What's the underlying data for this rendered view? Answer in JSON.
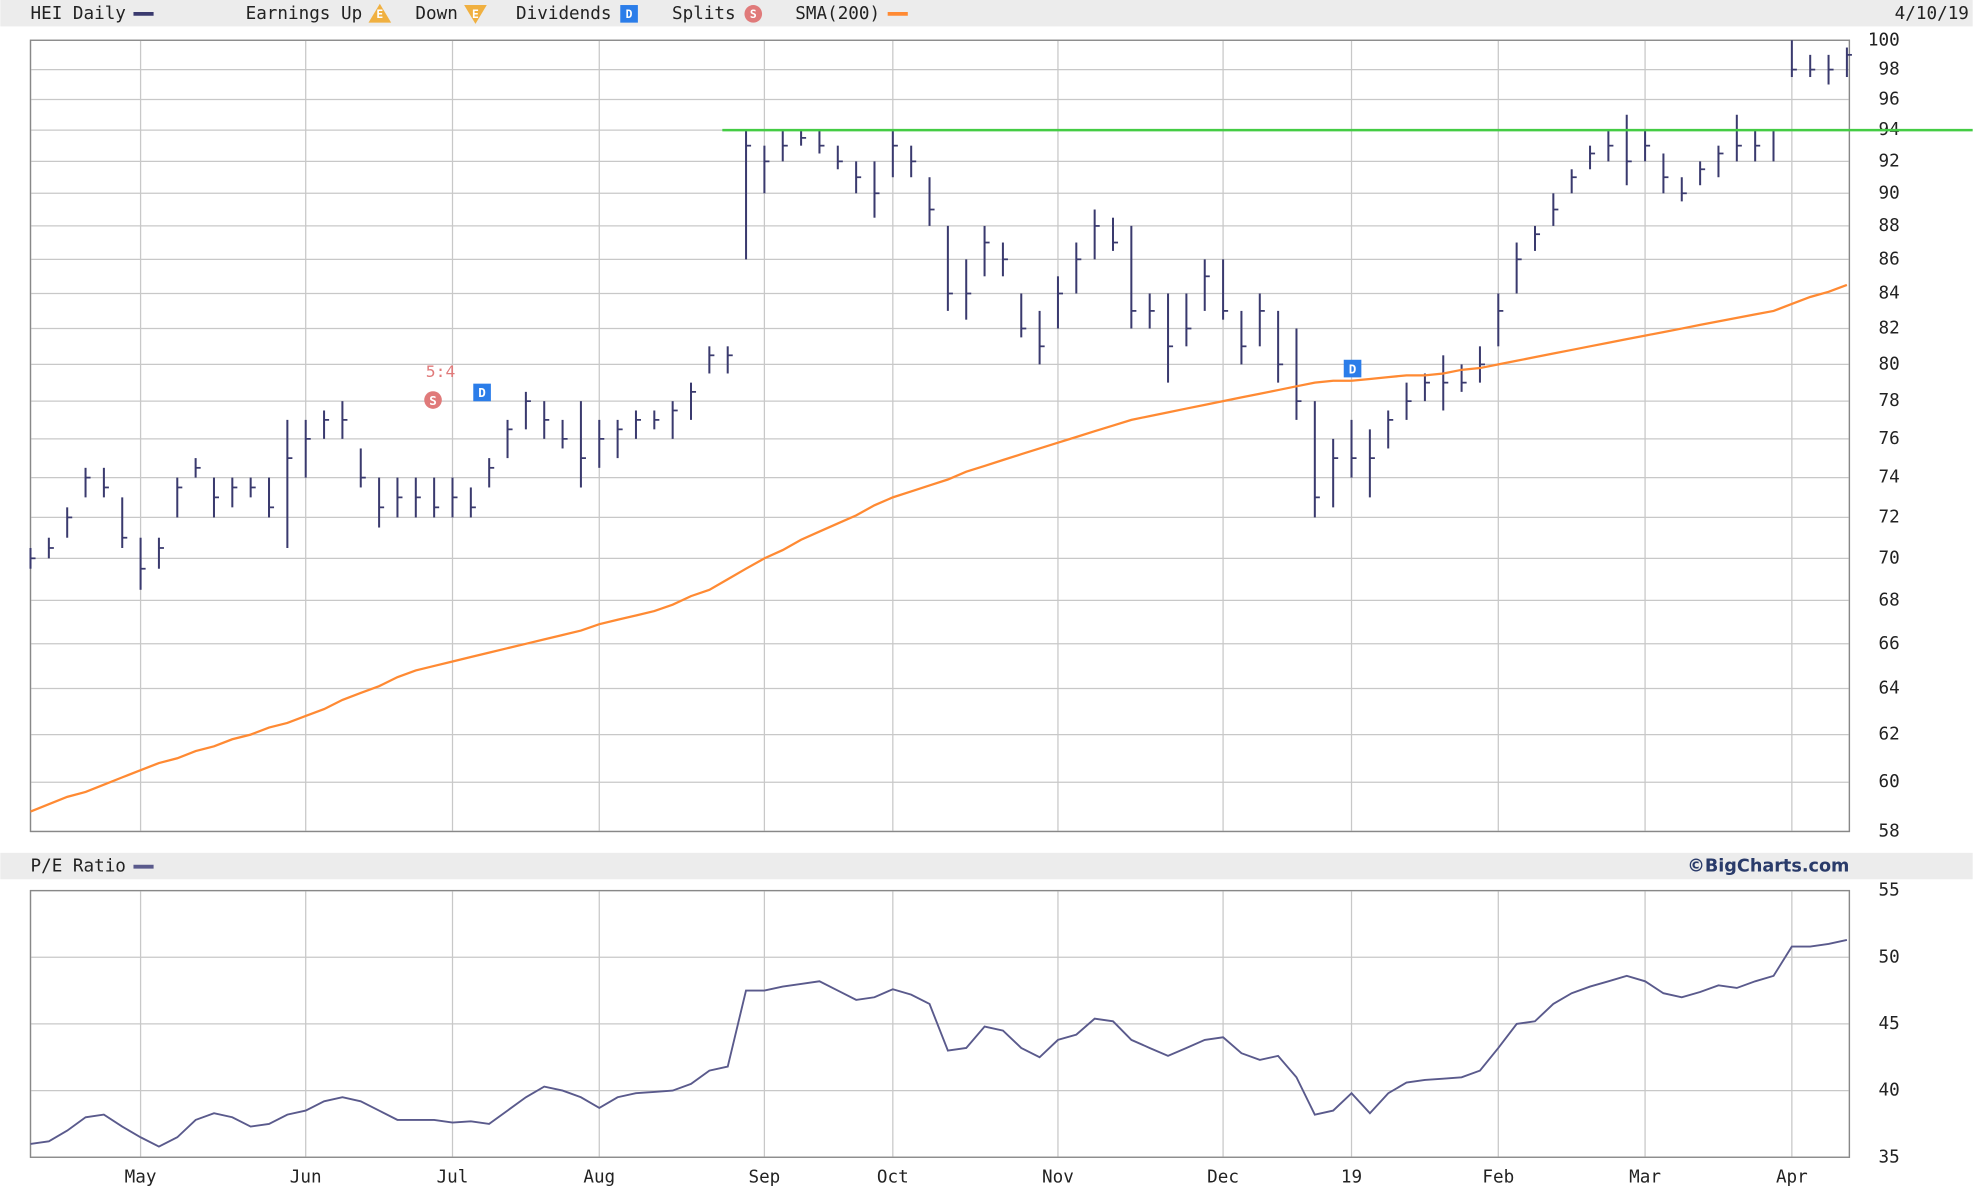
{
  "chart_data": [
    {
      "type": "ohlc",
      "log": true,
      "grid": true,
      "date": "4/10/19",
      "ylim": [
        58,
        100
      ],
      "yticks": [
        58,
        60,
        62,
        64,
        66,
        68,
        70,
        72,
        74,
        76,
        78,
        80,
        82,
        84,
        86,
        88,
        90,
        92,
        94,
        96,
        98,
        100
      ],
      "series": [
        {
          "name": "HEI Daily",
          "color": "#3a3a6e",
          "high": [
            70.5,
            71,
            72.5,
            74.5,
            74.5,
            73,
            71,
            71,
            74,
            75,
            74,
            74,
            74,
            74,
            77,
            77,
            77.5,
            78,
            75.5,
            74,
            74,
            74,
            74,
            74,
            73.5,
            75,
            77,
            78.5,
            78,
            77,
            78,
            77,
            77,
            77.5,
            77.5,
            78,
            79,
            81,
            81,
            94,
            93,
            94,
            94,
            94,
            93,
            92,
            92,
            94,
            93,
            91,
            88,
            86,
            88,
            87,
            84,
            83,
            85,
            87,
            89,
            88.5,
            88,
            84,
            84,
            84,
            86,
            86,
            83,
            84,
            83,
            82,
            78,
            76,
            77,
            76.5,
            77.5,
            79,
            79.5,
            80.5,
            80,
            81,
            84,
            87,
            88,
            90,
            91.5,
            93,
            94,
            95,
            94,
            92.5,
            91,
            92,
            93,
            95,
            94,
            94,
            100,
            99,
            99,
            99.5
          ],
          "low": [
            69.5,
            70,
            71,
            73,
            73,
            70.5,
            68.5,
            69.5,
            72,
            74,
            72,
            72.5,
            73,
            72,
            70.5,
            74,
            76,
            76,
            73.5,
            71.5,
            72,
            72,
            72,
            72,
            72,
            73.5,
            75,
            76.5,
            76,
            75.5,
            73.5,
            74.5,
            75,
            76,
            76.5,
            76,
            77,
            79.5,
            79.5,
            86,
            90,
            92,
            93,
            92.5,
            91.5,
            90,
            88.5,
            91,
            91,
            88,
            83,
            82.5,
            85,
            85,
            81.5,
            80,
            82,
            84,
            86,
            86.5,
            82,
            82,
            79,
            81,
            83,
            82.5,
            80,
            81,
            79,
            77,
            72,
            72.5,
            74,
            73,
            75.5,
            77,
            78,
            77.5,
            78.5,
            79,
            81,
            84,
            86.5,
            88,
            90,
            91.5,
            92,
            90.5,
            92,
            90,
            89.5,
            90.5,
            91,
            92,
            92,
            92,
            97.5,
            97.5,
            97,
            97.5
          ],
          "values": [
            70,
            70.5,
            72,
            74,
            73.5,
            71,
            69.5,
            70.5,
            73.5,
            74.5,
            73,
            73.5,
            73.5,
            72.5,
            75,
            76,
            77,
            77,
            74,
            72.5,
            73,
            73,
            72.5,
            73,
            72.5,
            74.5,
            76.5,
            78,
            77,
            76,
            75,
            76,
            76.5,
            77,
            77,
            77.5,
            78.5,
            80.5,
            80.5,
            93,
            92,
            93,
            93.5,
            93,
            92,
            91,
            90,
            93,
            92,
            89,
            84,
            84,
            87,
            86,
            82,
            81,
            84,
            86,
            88,
            87,
            83,
            83,
            81,
            82,
            85,
            83,
            81,
            83,
            80,
            78,
            73,
            75,
            75,
            75,
            77,
            78,
            79,
            79,
            79,
            80,
            83,
            86,
            87.5,
            89,
            91,
            92.5,
            93,
            92,
            93,
            91,
            90,
            91.5,
            92.5,
            93,
            93,
            94,
            98,
            98,
            98,
            99
          ]
        },
        {
          "name": "SMA(200)",
          "color": "#ff8a33",
          "values": [
            58.8,
            59.1,
            59.4,
            59.6,
            59.9,
            60.2,
            60.5,
            60.8,
            61.0,
            61.3,
            61.5,
            61.8,
            62.0,
            62.3,
            62.5,
            62.8,
            63.1,
            63.5,
            63.8,
            64.1,
            64.5,
            64.8,
            65.0,
            65.2,
            65.4,
            65.6,
            65.8,
            66.0,
            66.2,
            66.4,
            66.6,
            66.9,
            67.1,
            67.3,
            67.5,
            67.8,
            68.2,
            68.5,
            69.0,
            69.5,
            70.0,
            70.4,
            70.9,
            71.3,
            71.7,
            72.1,
            72.6,
            73.0,
            73.3,
            73.6,
            73.9,
            74.3,
            74.6,
            74.9,
            75.2,
            75.5,
            75.8,
            76.1,
            76.4,
            76.7,
            77.0,
            77.2,
            77.4,
            77.6,
            77.8,
            78.0,
            78.2,
            78.4,
            78.6,
            78.8,
            79.0,
            79.1,
            79.1,
            79.2,
            79.3,
            79.4,
            79.4,
            79.5,
            79.7,
            79.8,
            80.0,
            80.2,
            80.4,
            80.6,
            80.8,
            81.0,
            81.2,
            81.4,
            81.6,
            81.8,
            82.0,
            82.2,
            82.4,
            82.6,
            82.8,
            83.0,
            83.4,
            83.8,
            84.1,
            84.5
          ]
        }
      ],
      "event_legend": [
        {
          "name": "Earnings Up",
          "icon": "E",
          "color": "#f0b040"
        },
        {
          "name": "Down",
          "icon": "E",
          "color": "#f0b040"
        },
        {
          "name": "Dividends",
          "icon": "D",
          "color": "#2b7de9"
        },
        {
          "name": "Splits",
          "icon": "S",
          "color": "#e07a7a"
        }
      ],
      "events": [
        {
          "icon": "S",
          "label": "5:4",
          "color": "#e07a7a"
        },
        {
          "icon": "D",
          "color": "#2b7de9"
        },
        {
          "icon": "D",
          "color": "#2b7de9"
        }
      ],
      "reference_line": {
        "value": 94,
        "color": "#44cc44"
      }
    },
    {
      "type": "line",
      "grid": true,
      "credit": "©BigCharts.com",
      "categories": [
        null,
        null,
        null,
        null,
        null,
        null,
        "May",
        null,
        null,
        null,
        null,
        null,
        null,
        null,
        null,
        "Jun",
        null,
        null,
        null,
        null,
        null,
        null,
        null,
        "Jul",
        null,
        null,
        null,
        null,
        null,
        null,
        null,
        "Aug",
        null,
        null,
        null,
        null,
        null,
        null,
        null,
        null,
        "Sep",
        null,
        null,
        null,
        null,
        null,
        null,
        "Oct",
        null,
        null,
        null,
        null,
        null,
        null,
        null,
        null,
        "Nov",
        null,
        null,
        null,
        null,
        null,
        null,
        null,
        null,
        "Dec",
        null,
        null,
        null,
        null,
        null,
        null,
        "19",
        null,
        null,
        null,
        null,
        null,
        null,
        null,
        "Feb",
        null,
        null,
        null,
        null,
        null,
        null,
        null,
        "Mar",
        null,
        null,
        null,
        null,
        null,
        null,
        null,
        "Apr",
        null,
        null,
        null
      ],
      "ylim": [
        35,
        55
      ],
      "yticks": [
        35,
        40,
        45,
        50,
        55
      ],
      "series": [
        {
          "name": "P/E Ratio",
          "color": "#5a5a8c",
          "values": [
            36,
            36.2,
            37,
            38,
            38.2,
            37.3,
            36.5,
            35.8,
            36.5,
            37.8,
            38.3,
            38,
            37.3,
            37.5,
            38.2,
            38.5,
            39.2,
            39.5,
            39.2,
            38.5,
            37.8,
            37.8,
            37.8,
            37.6,
            37.7,
            37.5,
            38.5,
            39.5,
            40.3,
            40,
            39.5,
            38.7,
            39.5,
            39.8,
            39.9,
            40,
            40.5,
            41.5,
            41.8,
            47.5,
            47.5,
            47.8,
            48,
            48.2,
            47.5,
            46.8,
            47,
            47.6,
            47.2,
            46.5,
            43,
            43.2,
            44.8,
            44.5,
            43.2,
            42.5,
            43.8,
            44.2,
            45.4,
            45.2,
            43.8,
            43.2,
            42.6,
            43.2,
            43.8,
            44,
            42.8,
            42.3,
            42.6,
            41,
            38.2,
            38.5,
            39.8,
            38.3,
            39.8,
            40.6,
            40.8,
            40.9,
            41,
            41.5,
            43.2,
            45,
            45.2,
            46.5,
            47.3,
            47.8,
            48.2,
            48.6,
            48.2,
            47.3,
            47,
            47.4,
            47.9,
            47.7,
            48.2,
            48.6,
            50.8,
            50.8,
            51,
            51.3
          ]
        }
      ]
    }
  ]
}
